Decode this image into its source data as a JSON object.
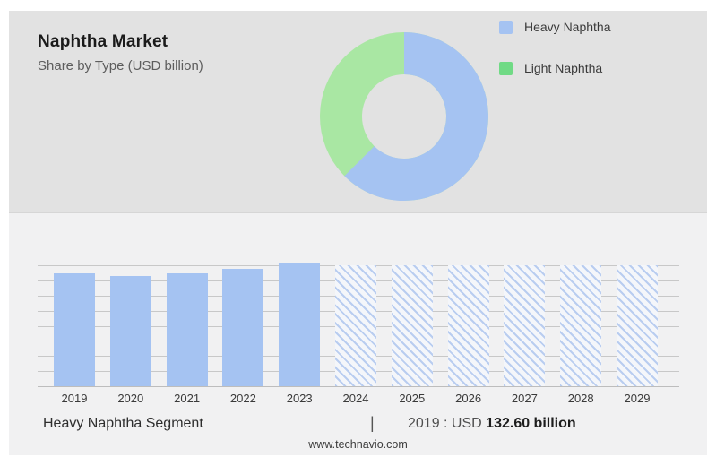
{
  "header": {
    "title": "Naphtha Market",
    "subtitle": "Share by Type (USD billion)"
  },
  "legend": {
    "items": [
      {
        "id": "heavy-naphtha",
        "label": "Heavy Naphtha",
        "color": "#a5c3f2"
      },
      {
        "id": "light-naphtha",
        "label": "Light Naphtha",
        "color": "#70da85"
      }
    ]
  },
  "donut": {
    "slices": [
      {
        "label": "Heavy Naphtha",
        "color": "#a5c3f2",
        "percent": 62.5
      },
      {
        "label": "Light Naphtha",
        "color": "#a9e7a3",
        "percent": 37.5
      }
    ]
  },
  "footer": {
    "segment_label": "Heavy Naphtha Segment",
    "separator": "|",
    "value_prefix": "2019 : USD",
    "value_bold": "132.60 billion",
    "website": "www.technavio.com"
  },
  "chart_data": [
    {
      "type": "pie",
      "subtype": "donut",
      "title": "Naphtha Market Share by Type (USD billion)",
      "labels": [
        "Heavy Naphtha",
        "Light Naphtha"
      ],
      "values_percent": [
        62.5,
        37.5
      ],
      "colors": [
        "#a5c3f2",
        "#a9e7a3"
      ],
      "legend_position": "right",
      "start_angle_deg": 0,
      "direction": "clockwise"
    },
    {
      "type": "bar",
      "title": "Heavy Naphtha Segment (USD billion)",
      "categories": [
        "2019",
        "2020",
        "2021",
        "2022",
        "2023",
        "2024",
        "2025",
        "2026",
        "2027",
        "2028",
        "2029"
      ],
      "values": [
        132.6,
        129.5,
        132.6,
        137.9,
        144.2,
        142.1,
        142.1,
        142.1,
        142.1,
        142.1,
        142.1
      ],
      "styles": [
        "solid",
        "solid",
        "solid",
        "solid",
        "solid",
        "hatched",
        "hatched",
        "hatched",
        "hatched",
        "hatched",
        "hatched"
      ],
      "annotation": "2019 : USD 132.60 billion",
      "xlabel": "",
      "ylabel": "",
      "ylim": [
        0,
        142.1
      ],
      "gridline_count": 9,
      "grid": "horizontal",
      "legend_position": "none",
      "bar_color": "#a5c3f2",
      "hatch_line_color": "#b9cdf0",
      "note": "2024-2029 are forecast years drawn as full-height hatched bars; only 2019 value (132.60) is labeled, others estimated from gridlines"
    }
  ],
  "colors": {
    "page_background": "#ffffff",
    "top_panel_background": "#e2e2e2",
    "bottom_panel_background": "#f1f1f2",
    "gridline": "#c8c8c8",
    "title_text": "#1b1b1b",
    "subtitle_text": "#5d5d5d"
  }
}
